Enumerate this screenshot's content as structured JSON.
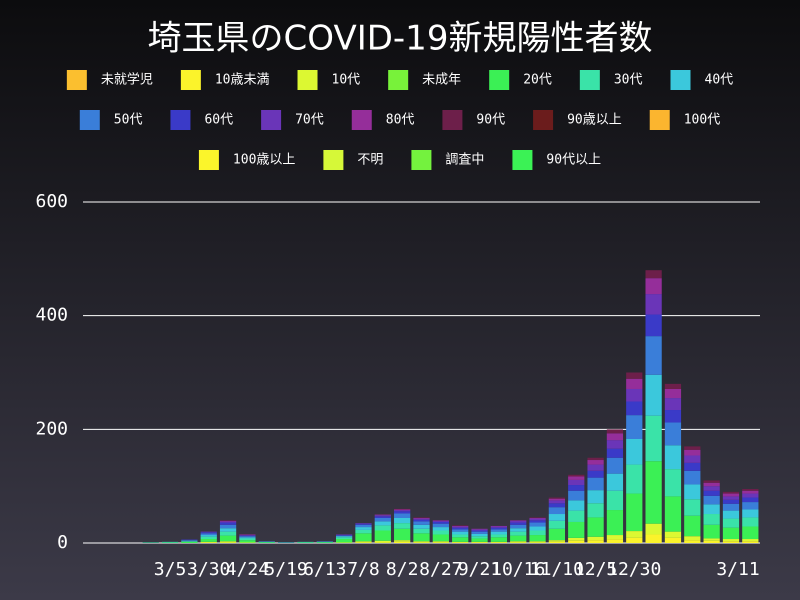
{
  "chart_data": {
    "type": "stacked-bar",
    "title": "埼玉県のCOVID-19新規陽性者数",
    "categories": [
      null,
      null,
      null,
      null,
      "3/5",
      null,
      "3/30",
      null,
      "4/24",
      null,
      "5/19",
      null,
      "6/13",
      null,
      "7/8",
      null,
      "8/2",
      null,
      "8/27",
      null,
      "9/21",
      null,
      "10/16",
      null,
      "11/10",
      null,
      "12/5",
      null,
      "12/30",
      null,
      null,
      null,
      null,
      null,
      "3/11"
    ],
    "ylim": [
      0,
      600
    ],
    "yticks": [
      0,
      200,
      400,
      600
    ],
    "grid": true,
    "series": [
      {
        "name": "未就学児",
        "color": "#fbbf2f",
        "values": [
          0,
          0,
          0,
          0,
          0,
          0,
          0,
          0,
          0,
          0,
          0,
          0,
          0,
          0,
          0,
          0,
          0,
          0,
          0,
          0,
          0,
          0,
          0,
          0,
          0,
          0,
          0,
          0,
          0,
          0,
          0,
          0,
          0,
          0,
          0
        ]
      },
      {
        "name": "10歳未満",
        "color": "#fbf32b",
        "values": [
          0,
          0,
          0,
          0,
          0,
          0,
          1,
          1,
          0,
          0,
          0,
          0,
          0,
          0,
          1,
          1,
          2,
          1,
          1,
          1,
          1,
          1,
          1,
          1,
          2,
          4,
          5,
          6,
          9,
          15,
          9,
          5,
          4,
          3,
          3
        ]
      },
      {
        "name": "10代",
        "color": "#dcf832",
        "values": [
          0,
          0,
          0,
          0,
          0,
          0,
          1,
          2,
          1,
          0,
          0,
          0,
          0,
          1,
          2,
          3,
          3,
          2,
          2,
          1,
          1,
          1,
          2,
          2,
          3,
          5,
          6,
          8,
          12,
          19,
          11,
          7,
          4,
          4,
          4
        ]
      },
      {
        "name": "未成年",
        "color": "#78f23a",
        "values": [
          0,
          0,
          0,
          0,
          0,
          0,
          0,
          0,
          0,
          0,
          0,
          0,
          0,
          0,
          0,
          0,
          0,
          0,
          0,
          0,
          0,
          0,
          0,
          0,
          0,
          0,
          0,
          0,
          0,
          0,
          0,
          0,
          0,
          0,
          0
        ]
      },
      {
        "name": "20代",
        "color": "#3bf055",
        "values": [
          0,
          0,
          0,
          0,
          1,
          2,
          5,
          10,
          4,
          1,
          0,
          1,
          1,
          6,
          14,
          18,
          20,
          14,
          12,
          8,
          6,
          8,
          10,
          11,
          20,
          28,
          34,
          44,
          66,
          110,
          62,
          36,
          24,
          20,
          22
        ]
      },
      {
        "name": "30代",
        "color": "#3ae3a8",
        "values": [
          0,
          0,
          0,
          1,
          0,
          1,
          4,
          7,
          3,
          1,
          0,
          0,
          1,
          3,
          6,
          9,
          10,
          8,
          7,
          5,
          4,
          5,
          7,
          8,
          14,
          20,
          25,
          34,
          51,
          80,
          48,
          29,
          19,
          16,
          16
        ]
      },
      {
        "name": "40代",
        "color": "#3bc8dc",
        "values": [
          0,
          0,
          0,
          0,
          1,
          1,
          3,
          6,
          2,
          0,
          1,
          1,
          0,
          2,
          5,
          7,
          9,
          7,
          6,
          5,
          4,
          5,
          6,
          7,
          12,
          18,
          23,
          30,
          45,
          72,
          42,
          26,
          17,
          14,
          14
        ]
      },
      {
        "name": "50代",
        "color": "#3a7ed9",
        "values": [
          0,
          0,
          0,
          0,
          0,
          1,
          3,
          6,
          2,
          1,
          0,
          0,
          1,
          1,
          4,
          6,
          8,
          6,
          6,
          4,
          4,
          4,
          6,
          7,
          12,
          17,
          22,
          28,
          42,
          68,
          40,
          24,
          15,
          12,
          13
        ]
      },
      {
        "name": "60代",
        "color": "#3a3ac8",
        "values": [
          0,
          0,
          0,
          0,
          0,
          1,
          2,
          4,
          1,
          0,
          0,
          0,
          0,
          1,
          2,
          3,
          4,
          3,
          3,
          3,
          2,
          3,
          4,
          4,
          7,
          10,
          12,
          16,
          24,
          38,
          22,
          14,
          9,
          7,
          8
        ]
      },
      {
        "name": "70代",
        "color": "#6a35b8",
        "values": [
          0,
          0,
          0,
          0,
          0,
          0,
          1,
          2,
          1,
          0,
          0,
          0,
          0,
          1,
          1,
          2,
          2,
          2,
          2,
          2,
          2,
          2,
          3,
          3,
          5,
          9,
          11,
          15,
          22,
          36,
          21,
          13,
          8,
          6,
          7
        ]
      },
      {
        "name": "80代",
        "color": "#952e9a",
        "values": [
          0,
          0,
          0,
          0,
          0,
          0,
          0,
          1,
          1,
          0,
          0,
          0,
          0,
          0,
          0,
          1,
          1,
          1,
          1,
          1,
          1,
          1,
          1,
          1,
          3,
          6,
          8,
          12,
          18,
          28,
          16,
          10,
          6,
          5,
          5
        ]
      },
      {
        "name": "90代",
        "color": "#6d1f4a",
        "values": [
          0,
          0,
          0,
          0,
          0,
          0,
          0,
          1,
          0,
          0,
          0,
          0,
          0,
          0,
          0,
          0,
          1,
          1,
          0,
          1,
          0,
          0,
          0,
          1,
          2,
          3,
          4,
          7,
          11,
          14,
          9,
          6,
          4,
          3,
          3
        ]
      },
      {
        "name": "90歳以上",
        "color": "#6b1c1c",
        "values": [
          0,
          0,
          0,
          0,
          0,
          0,
          0,
          0,
          0,
          0,
          0,
          0,
          0,
          0,
          0,
          0,
          0,
          0,
          0,
          0,
          0,
          0,
          0,
          0,
          0,
          0,
          0,
          0,
          0,
          0,
          0,
          0,
          0,
          0,
          0
        ]
      },
      {
        "name": "100代",
        "color": "#fbb52f",
        "values": [
          0,
          0,
          0,
          0,
          0,
          0,
          0,
          0,
          0,
          0,
          0,
          0,
          0,
          0,
          0,
          0,
          0,
          0,
          0,
          0,
          0,
          0,
          0,
          0,
          0,
          0,
          0,
          0,
          0,
          0,
          0,
          0,
          0,
          0,
          0
        ]
      },
      {
        "name": "100歳以上",
        "color": "#fbf52b",
        "values": [
          0,
          0,
          0,
          0,
          0,
          0,
          0,
          0,
          0,
          0,
          0,
          0,
          0,
          0,
          0,
          0,
          0,
          0,
          0,
          0,
          0,
          0,
          0,
          0,
          0,
          0,
          0,
          0,
          0,
          0,
          0,
          0,
          0,
          0,
          0
        ]
      },
      {
        "name": "不明",
        "color": "#d6f838",
        "values": [
          0,
          0,
          0,
          0,
          0,
          0,
          0,
          0,
          0,
          0,
          0,
          0,
          0,
          0,
          0,
          0,
          0,
          0,
          0,
          0,
          0,
          0,
          0,
          0,
          0,
          0,
          0,
          0,
          0,
          0,
          0,
          0,
          0,
          0,
          0
        ]
      },
      {
        "name": "調査中",
        "color": "#74f23e",
        "values": [
          0,
          0,
          0,
          0,
          0,
          0,
          0,
          0,
          0,
          0,
          0,
          0,
          0,
          0,
          0,
          0,
          0,
          0,
          0,
          0,
          0,
          0,
          0,
          0,
          0,
          0,
          0,
          0,
          0,
          0,
          0,
          0,
          0,
          0,
          0
        ]
      },
      {
        "name": "90代以上",
        "color": "#3bf255",
        "values": [
          0,
          0,
          0,
          0,
          0,
          0,
          0,
          0,
          0,
          0,
          0,
          0,
          0,
          0,
          0,
          0,
          0,
          0,
          0,
          0,
          0,
          0,
          0,
          0,
          0,
          0,
          0,
          0,
          0,
          0,
          0,
          0,
          0,
          0,
          0
        ]
      }
    ]
  }
}
